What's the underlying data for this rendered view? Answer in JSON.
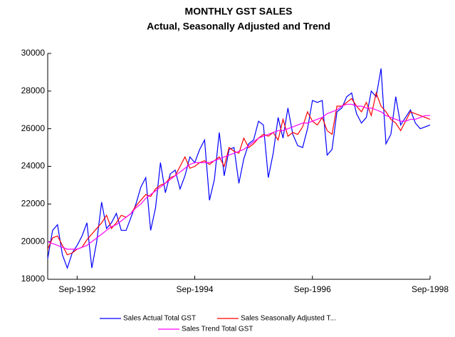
{
  "chart_data": {
    "type": "line",
    "title": "MONTHLY GST SALES",
    "subtitle": "Actual, Seasonally Adjusted and Trend",
    "categories": [
      null,
      null,
      null,
      null,
      null,
      null,
      "Sep-1992",
      null,
      null,
      null,
      null,
      null,
      null,
      null,
      null,
      null,
      null,
      null,
      null,
      null,
      null,
      null,
      null,
      null,
      null,
      null,
      null,
      null,
      null,
      null,
      "Sep-1994",
      null,
      null,
      null,
      null,
      null,
      null,
      null,
      null,
      null,
      null,
      null,
      null,
      null,
      null,
      null,
      null,
      null,
      null,
      null,
      null,
      null,
      null,
      null,
      "Sep-1996",
      null,
      null,
      null,
      null,
      null,
      null,
      null,
      null,
      null,
      null,
      null,
      null,
      null,
      null,
      null,
      null,
      null,
      null,
      null,
      null,
      null,
      null,
      null,
      "Sep-1998"
    ],
    "series": [
      {
        "name": "Sales Actual Total GST",
        "color": "#0000ff",
        "values": [
          19100,
          20600,
          20900,
          19300,
          18600,
          19400,
          19800,
          20300,
          21000,
          18600,
          20000,
          22100,
          20700,
          21000,
          21500,
          20600,
          20600,
          21300,
          22000,
          22900,
          23400,
          20600,
          21800,
          24200,
          22600,
          23600,
          23800,
          22800,
          23500,
          24500,
          24200,
          24900,
          25400,
          22200,
          23300,
          25800,
          23500,
          24900,
          25000,
          23100,
          24400,
          25200,
          25400,
          26400,
          26200,
          23400,
          24700,
          26600,
          25500,
          27100,
          25700,
          25100,
          25000,
          26000,
          27500,
          27400,
          27500,
          24600,
          24900,
          26900,
          27100,
          27700,
          27900,
          26800,
          26300,
          26600,
          28000,
          27700,
          29200,
          25200,
          25700,
          27700,
          26200,
          26600,
          27000,
          26300,
          26000,
          26100,
          26200
        ]
      },
      {
        "name": "Sales Seasonally Adjusted T...",
        "color": "#ff0000",
        "values": [
          19600,
          20200,
          20300,
          19800,
          19300,
          19400,
          19600,
          19700,
          20100,
          20400,
          20700,
          21000,
          21400,
          20700,
          21000,
          21400,
          21300,
          21500,
          21900,
          22200,
          22500,
          22400,
          22800,
          23000,
          23100,
          23400,
          23500,
          24000,
          24500,
          23900,
          24000,
          24200,
          24300,
          24100,
          24300,
          24500,
          24000,
          25000,
          24800,
          24700,
          25500,
          25000,
          25200,
          25500,
          25700,
          25600,
          25800,
          25400,
          26500,
          25600,
          25800,
          25700,
          26100,
          26900,
          26400,
          26200,
          26600,
          25900,
          25700,
          27200,
          27200,
          27400,
          27600,
          27200,
          26900,
          27400,
          26700,
          27900,
          27200,
          26900,
          26500,
          26300,
          25900,
          26400,
          26900,
          26800,
          26700,
          26600,
          26500
        ]
      },
      {
        "name": "Sales Trend Total GST",
        "color": "#ff00ff",
        "values": [
          20000,
          19900,
          19800,
          19700,
          19600,
          19600,
          19600,
          19700,
          19800,
          20000,
          20200,
          20400,
          20600,
          20800,
          20900,
          21100,
          21300,
          21500,
          21800,
          22000,
          22300,
          22500,
          22700,
          22900,
          23100,
          23300,
          23500,
          23700,
          23900,
          24100,
          24200,
          24200,
          24200,
          24200,
          24300,
          24400,
          24500,
          24600,
          24700,
          24800,
          24900,
          25100,
          25300,
          25500,
          25600,
          25700,
          25800,
          25900,
          25900,
          26000,
          26100,
          26200,
          26300,
          26300,
          26400,
          26500,
          26600,
          26800,
          26900,
          27000,
          27200,
          27300,
          27300,
          27200,
          27200,
          27100,
          27100,
          27000,
          26900,
          26700,
          26600,
          26500,
          26400,
          26400,
          26500,
          26500,
          26600,
          26700,
          26700
        ]
      }
    ],
    "ylim": [
      18000,
      30000
    ],
    "yticks": [
      18000,
      20000,
      22000,
      24000,
      26000,
      28000,
      30000
    ],
    "legend": "bottom"
  }
}
